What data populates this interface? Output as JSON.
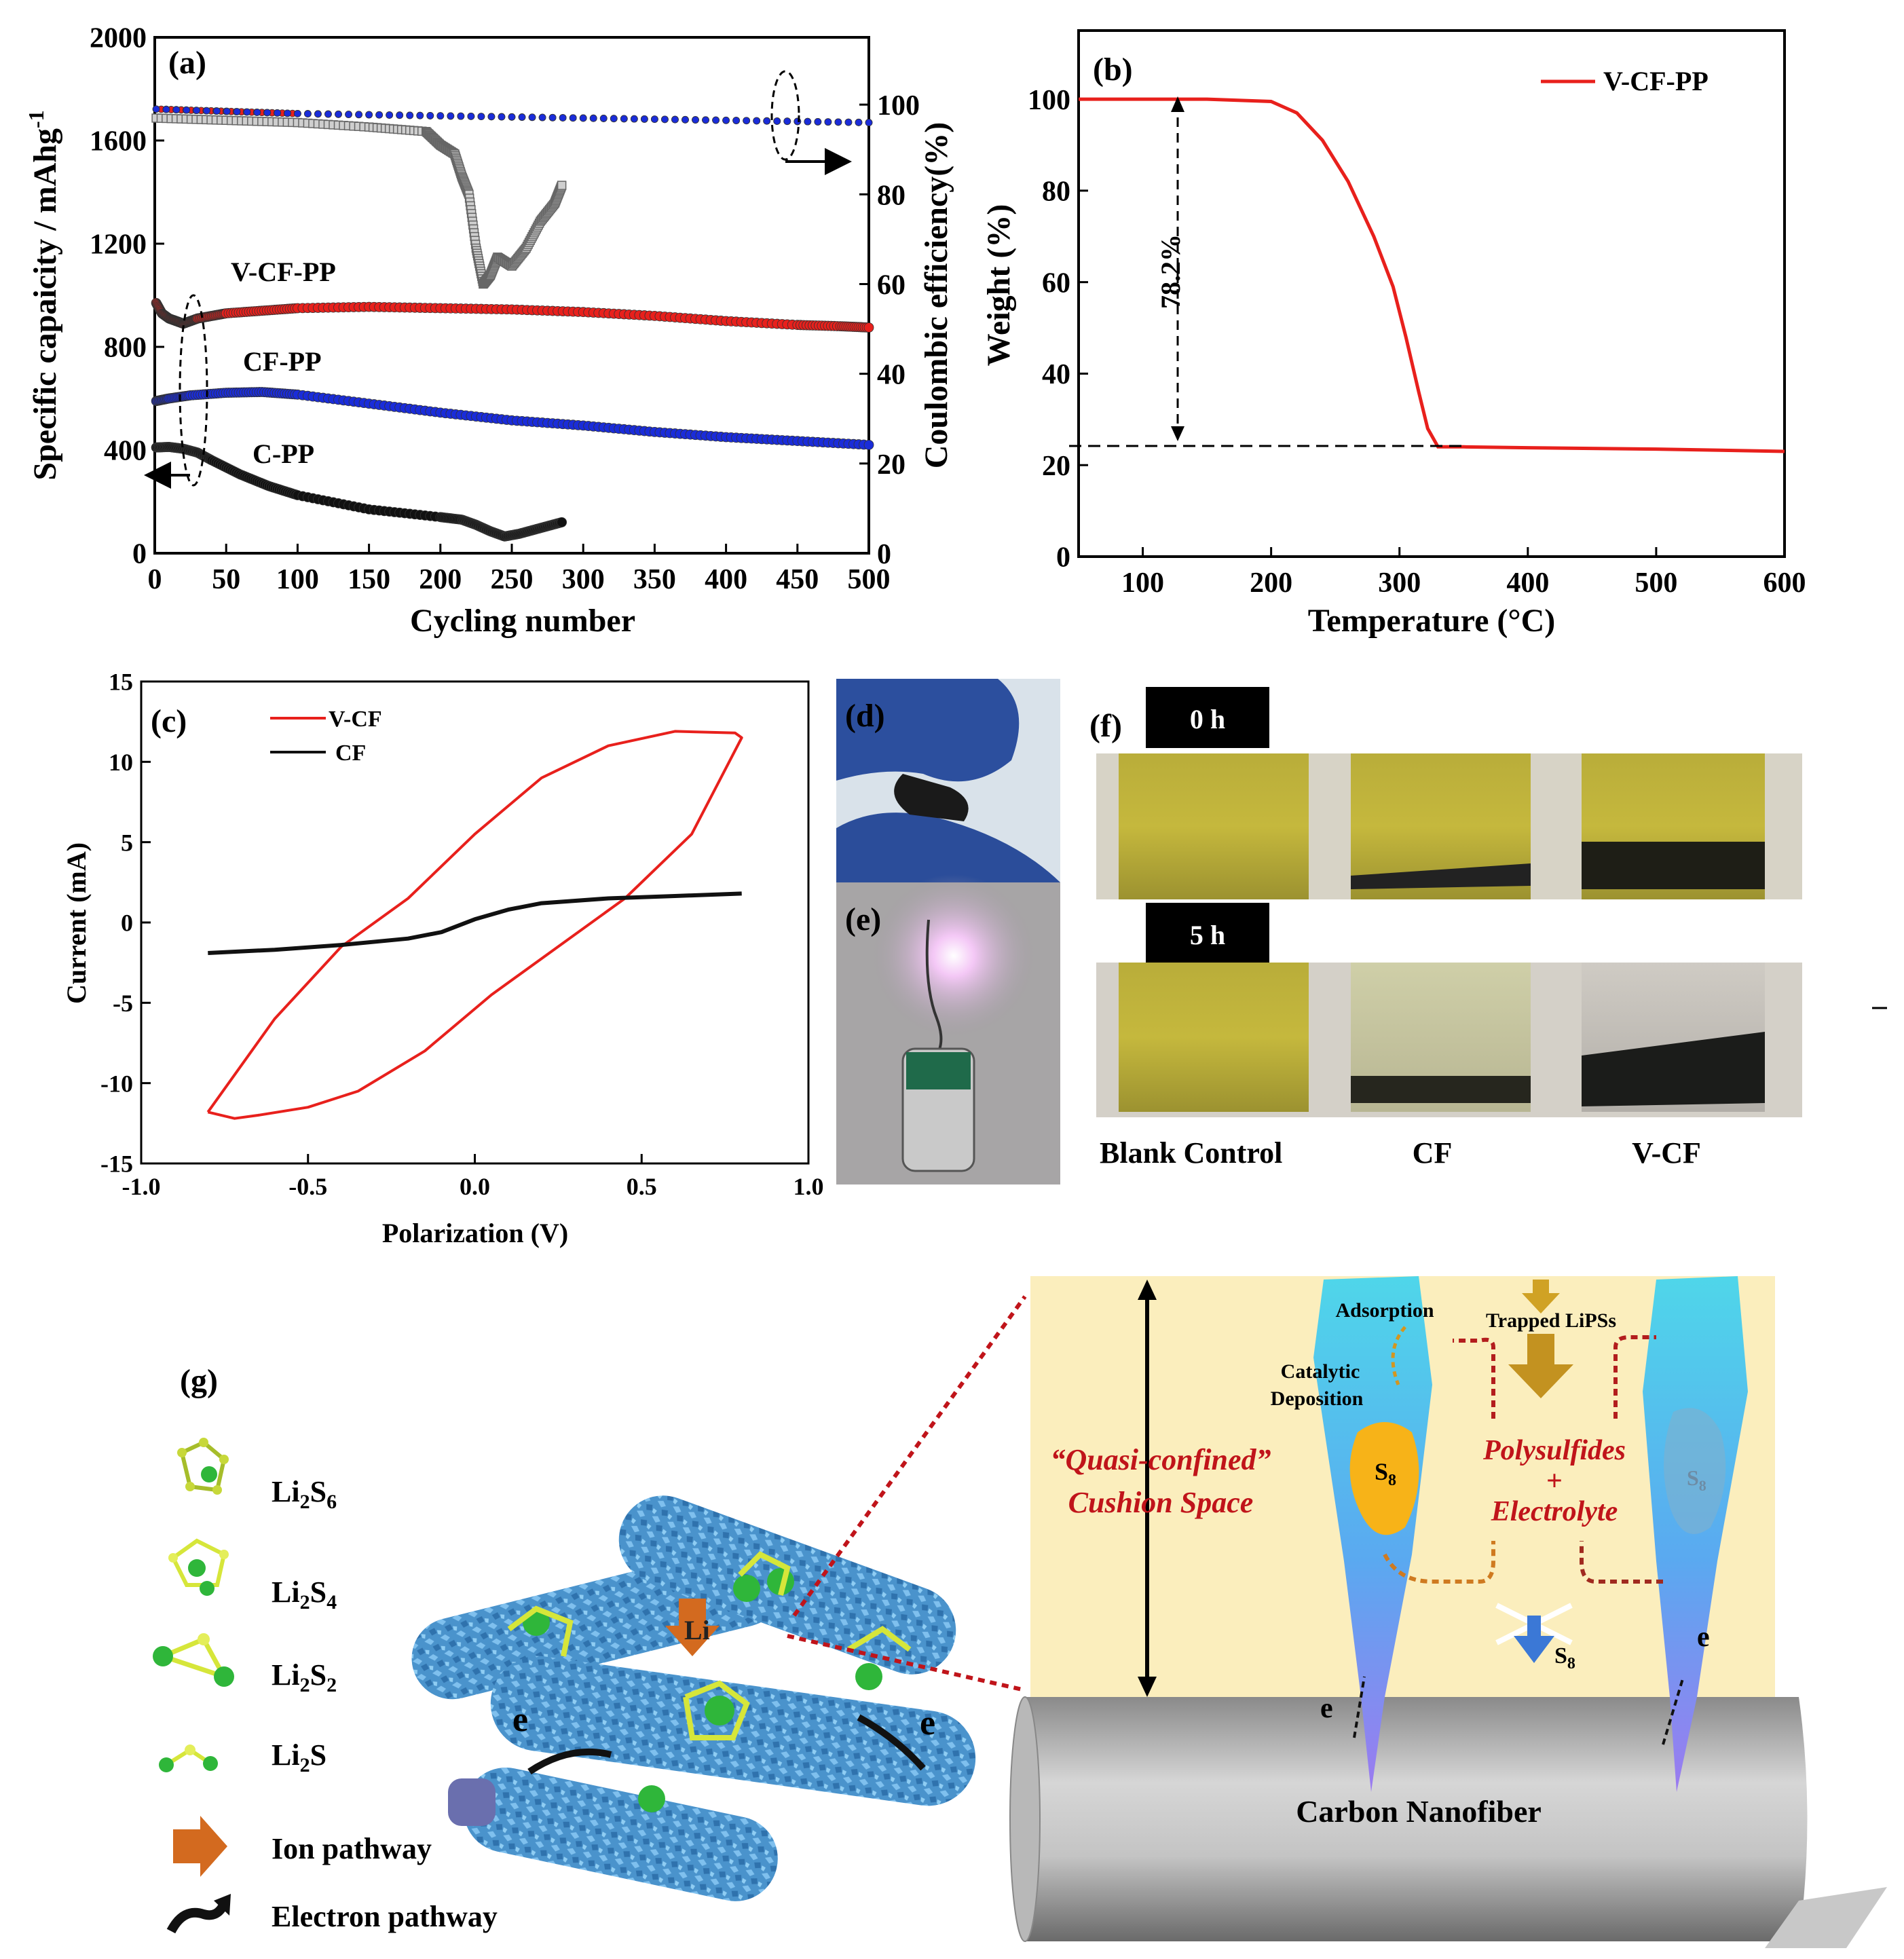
{
  "panel_a": {
    "label": "(a)",
    "left_axis_title": "Specific capaicity / mAhg",
    "left_axis_sup": "-1",
    "right_axis_title": "Coulombic efficiency(%)",
    "x_axis_title": "Cycling number",
    "series_labels": {
      "vcfpp": "V-CF-PP",
      "cfpp": "CF-PP",
      "cpp": "C-PP"
    }
  },
  "panel_b": {
    "label": "(b)",
    "legend": "V-CF-PP",
    "x_axis_title": "Temperature (°C)",
    "y_axis_title": "Weight (%)",
    "annotation": "78.2%"
  },
  "panel_c": {
    "label": "(c)",
    "legend_vcf": "V-CF",
    "legend_cf": "CF",
    "x_axis_title": "Polarization (V)",
    "y_axis_title": "Current (mA)"
  },
  "panel_d": {
    "label": "(d)"
  },
  "panel_e": {
    "label": "(e)"
  },
  "panel_f": {
    "label": "(f)",
    "time_0": "0 h",
    "time_5": "5 h",
    "samples": [
      "Blank Control",
      "CF",
      "V-CF"
    ]
  },
  "panel_g": {
    "label": "(g)",
    "legend": {
      "li2s6": {
        "main": "Li",
        "sub1": "2",
        "mid": "S",
        "sub2": "6"
      },
      "li2s4": {
        "main": "Li",
        "sub1": "2",
        "mid": "S",
        "sub2": "4"
      },
      "li2s2": {
        "main": "Li",
        "sub1": "2",
        "mid": "S",
        "sub2": "2"
      },
      "li2s": {
        "main": "Li",
        "sub1": "2",
        "mid": "S"
      },
      "ion_pathway": "Ion pathway",
      "electron_pathway": "Electron pathway"
    },
    "li_label": "Li",
    "e_label": "e",
    "cushion_line1": "“Quasi-confined”",
    "cushion_line2": "Cushion Space",
    "adsorption": "Adsorption",
    "catalytic": "Catalytic",
    "deposition": "Deposition",
    "trapped": "Trapped LiPSs",
    "s8_main": "S",
    "s8_sub": "8",
    "polysulfides": "Polysulfides",
    "plus": "+",
    "electrolyte": "Electrolyte",
    "carbon_nanofiber": "Carbon Nanofiber"
  },
  "chart_data": [
    {
      "panel": "a",
      "type": "scatter",
      "xlabel": "Cycling number",
      "ylabel": "Specific capaicity / mAhg-1",
      "y2label": "Coulombic efficiency(%)",
      "xlim": [
        0,
        500
      ],
      "ylim": [
        0,
        2000
      ],
      "y2lim": [
        0,
        115
      ],
      "xticks": [
        0,
        50,
        100,
        150,
        200,
        250,
        300,
        350,
        400,
        450,
        500
      ],
      "yticks": [
        0,
        400,
        800,
        1200,
        1600,
        2000
      ],
      "y2ticks": [
        0,
        20,
        40,
        60,
        80,
        100
      ],
      "series": [
        {
          "name": "V-CF-PP",
          "color": "#e8201c",
          "axis": "left",
          "x": [
            1,
            5,
            10,
            15,
            20,
            25,
            30,
            40,
            50,
            75,
            100,
            150,
            200,
            250,
            300,
            350,
            400,
            450,
            480,
            500
          ],
          "y": [
            970,
            930,
            910,
            900,
            890,
            900,
            910,
            920,
            930,
            940,
            950,
            955,
            950,
            945,
            935,
            920,
            900,
            885,
            880,
            875
          ]
        },
        {
          "name": "CF-PP",
          "color": "#1a2cd9",
          "axis": "left",
          "x": [
            1,
            10,
            25,
            50,
            75,
            100,
            150,
            200,
            250,
            300,
            350,
            400,
            450,
            500
          ],
          "y": [
            590,
            600,
            612,
            622,
            625,
            615,
            580,
            545,
            515,
            495,
            470,
            450,
            435,
            420
          ]
        },
        {
          "name": "C-PP",
          "color": "#111111",
          "axis": "left",
          "x": [
            1,
            10,
            20,
            30,
            40,
            60,
            80,
            100,
            150,
            200,
            215,
            225,
            235,
            245,
            255,
            265,
            275,
            285
          ],
          "y": [
            410,
            412,
            405,
            390,
            360,
            305,
            260,
            225,
            170,
            140,
            130,
            110,
            85,
            65,
            75,
            90,
            105,
            120
          ]
        },
        {
          "name": "V-CF-PP CE",
          "color": "#e8201c",
          "axis": "right",
          "x": [
            1,
            50,
            100,
            200,
            300,
            400,
            500
          ],
          "y": [
            99,
            98.5,
            98,
            97.5,
            97,
            96.5,
            96
          ]
        },
        {
          "name": "CF-PP CE",
          "color": "#1a2cd9",
          "axis": "right",
          "x": [
            1,
            100,
            200,
            300,
            400,
            500
          ],
          "y": [
            99,
            98,
            97.5,
            97,
            96.5,
            96
          ]
        },
        {
          "name": "C-PP CE",
          "color": "#888888",
          "axis": "right",
          "x": [
            1,
            50,
            100,
            150,
            190,
            200,
            210,
            215,
            220,
            225,
            230,
            235,
            240,
            250,
            260,
            270,
            280,
            285
          ],
          "y": [
            97,
            96.5,
            96,
            95,
            94,
            91,
            89,
            84,
            80,
            68,
            60,
            62,
            66,
            64,
            68,
            74,
            78,
            82
          ]
        }
      ]
    },
    {
      "panel": "b",
      "type": "line",
      "xlabel": "Temperature (°C)",
      "ylabel": "Weight (%)",
      "xlim": [
        50,
        600
      ],
      "ylim": [
        0,
        115
      ],
      "xticks": [
        100,
        200,
        300,
        400,
        500,
        600
      ],
      "yticks": [
        0,
        20,
        40,
        60,
        80,
        100
      ],
      "series": [
        {
          "name": "V-CF-PP",
          "color": "#e8201c",
          "x": [
            50,
            150,
            200,
            220,
            240,
            260,
            280,
            295,
            305,
            315,
            322,
            330,
            350,
            400,
            500,
            600
          ],
          "y": [
            100,
            100,
            99.5,
            97,
            91,
            82,
            70,
            59,
            48,
            36,
            28,
            24,
            24,
            23.8,
            23.5,
            23
          ]
        }
      ],
      "annotation": "78.2%"
    },
    {
      "panel": "c",
      "type": "line",
      "xlabel": "Polarization (V)",
      "ylabel": "Current (mA)",
      "xlim": [
        -1.0,
        1.0
      ],
      "ylim": [
        -15,
        15
      ],
      "xticks": [
        -1.0,
        -0.5,
        0.0,
        0.5,
        1.0
      ],
      "yticks": [
        -15,
        -10,
        -5,
        0,
        5,
        10,
        15
      ],
      "series": [
        {
          "name": "V-CF",
          "color": "#e8201c",
          "x": [
            -0.8,
            -0.6,
            -0.4,
            -0.2,
            0.0,
            0.2,
            0.4,
            0.6,
            0.78,
            0.8,
            0.65,
            0.45,
            0.25,
            0.05,
            -0.15,
            -0.35,
            -0.5,
            -0.65,
            -0.72,
            -0.8
          ],
          "y": [
            -11.8,
            -6,
            -1.5,
            1.5,
            5.5,
            9,
            11,
            11.9,
            11.8,
            11.5,
            5.5,
            1.5,
            -1.5,
            -4.5,
            -8,
            -10.5,
            -11.5,
            -12,
            -12.2,
            -11.8
          ]
        },
        {
          "name": "CF",
          "color": "#111111",
          "x": [
            -0.8,
            -0.6,
            -0.4,
            -0.2,
            -0.1,
            0.0,
            0.1,
            0.2,
            0.4,
            0.6,
            0.8
          ],
          "y": [
            -1.9,
            -1.7,
            -1.4,
            -1.0,
            -0.6,
            0.2,
            0.8,
            1.2,
            1.5,
            1.65,
            1.8
          ]
        }
      ]
    }
  ]
}
